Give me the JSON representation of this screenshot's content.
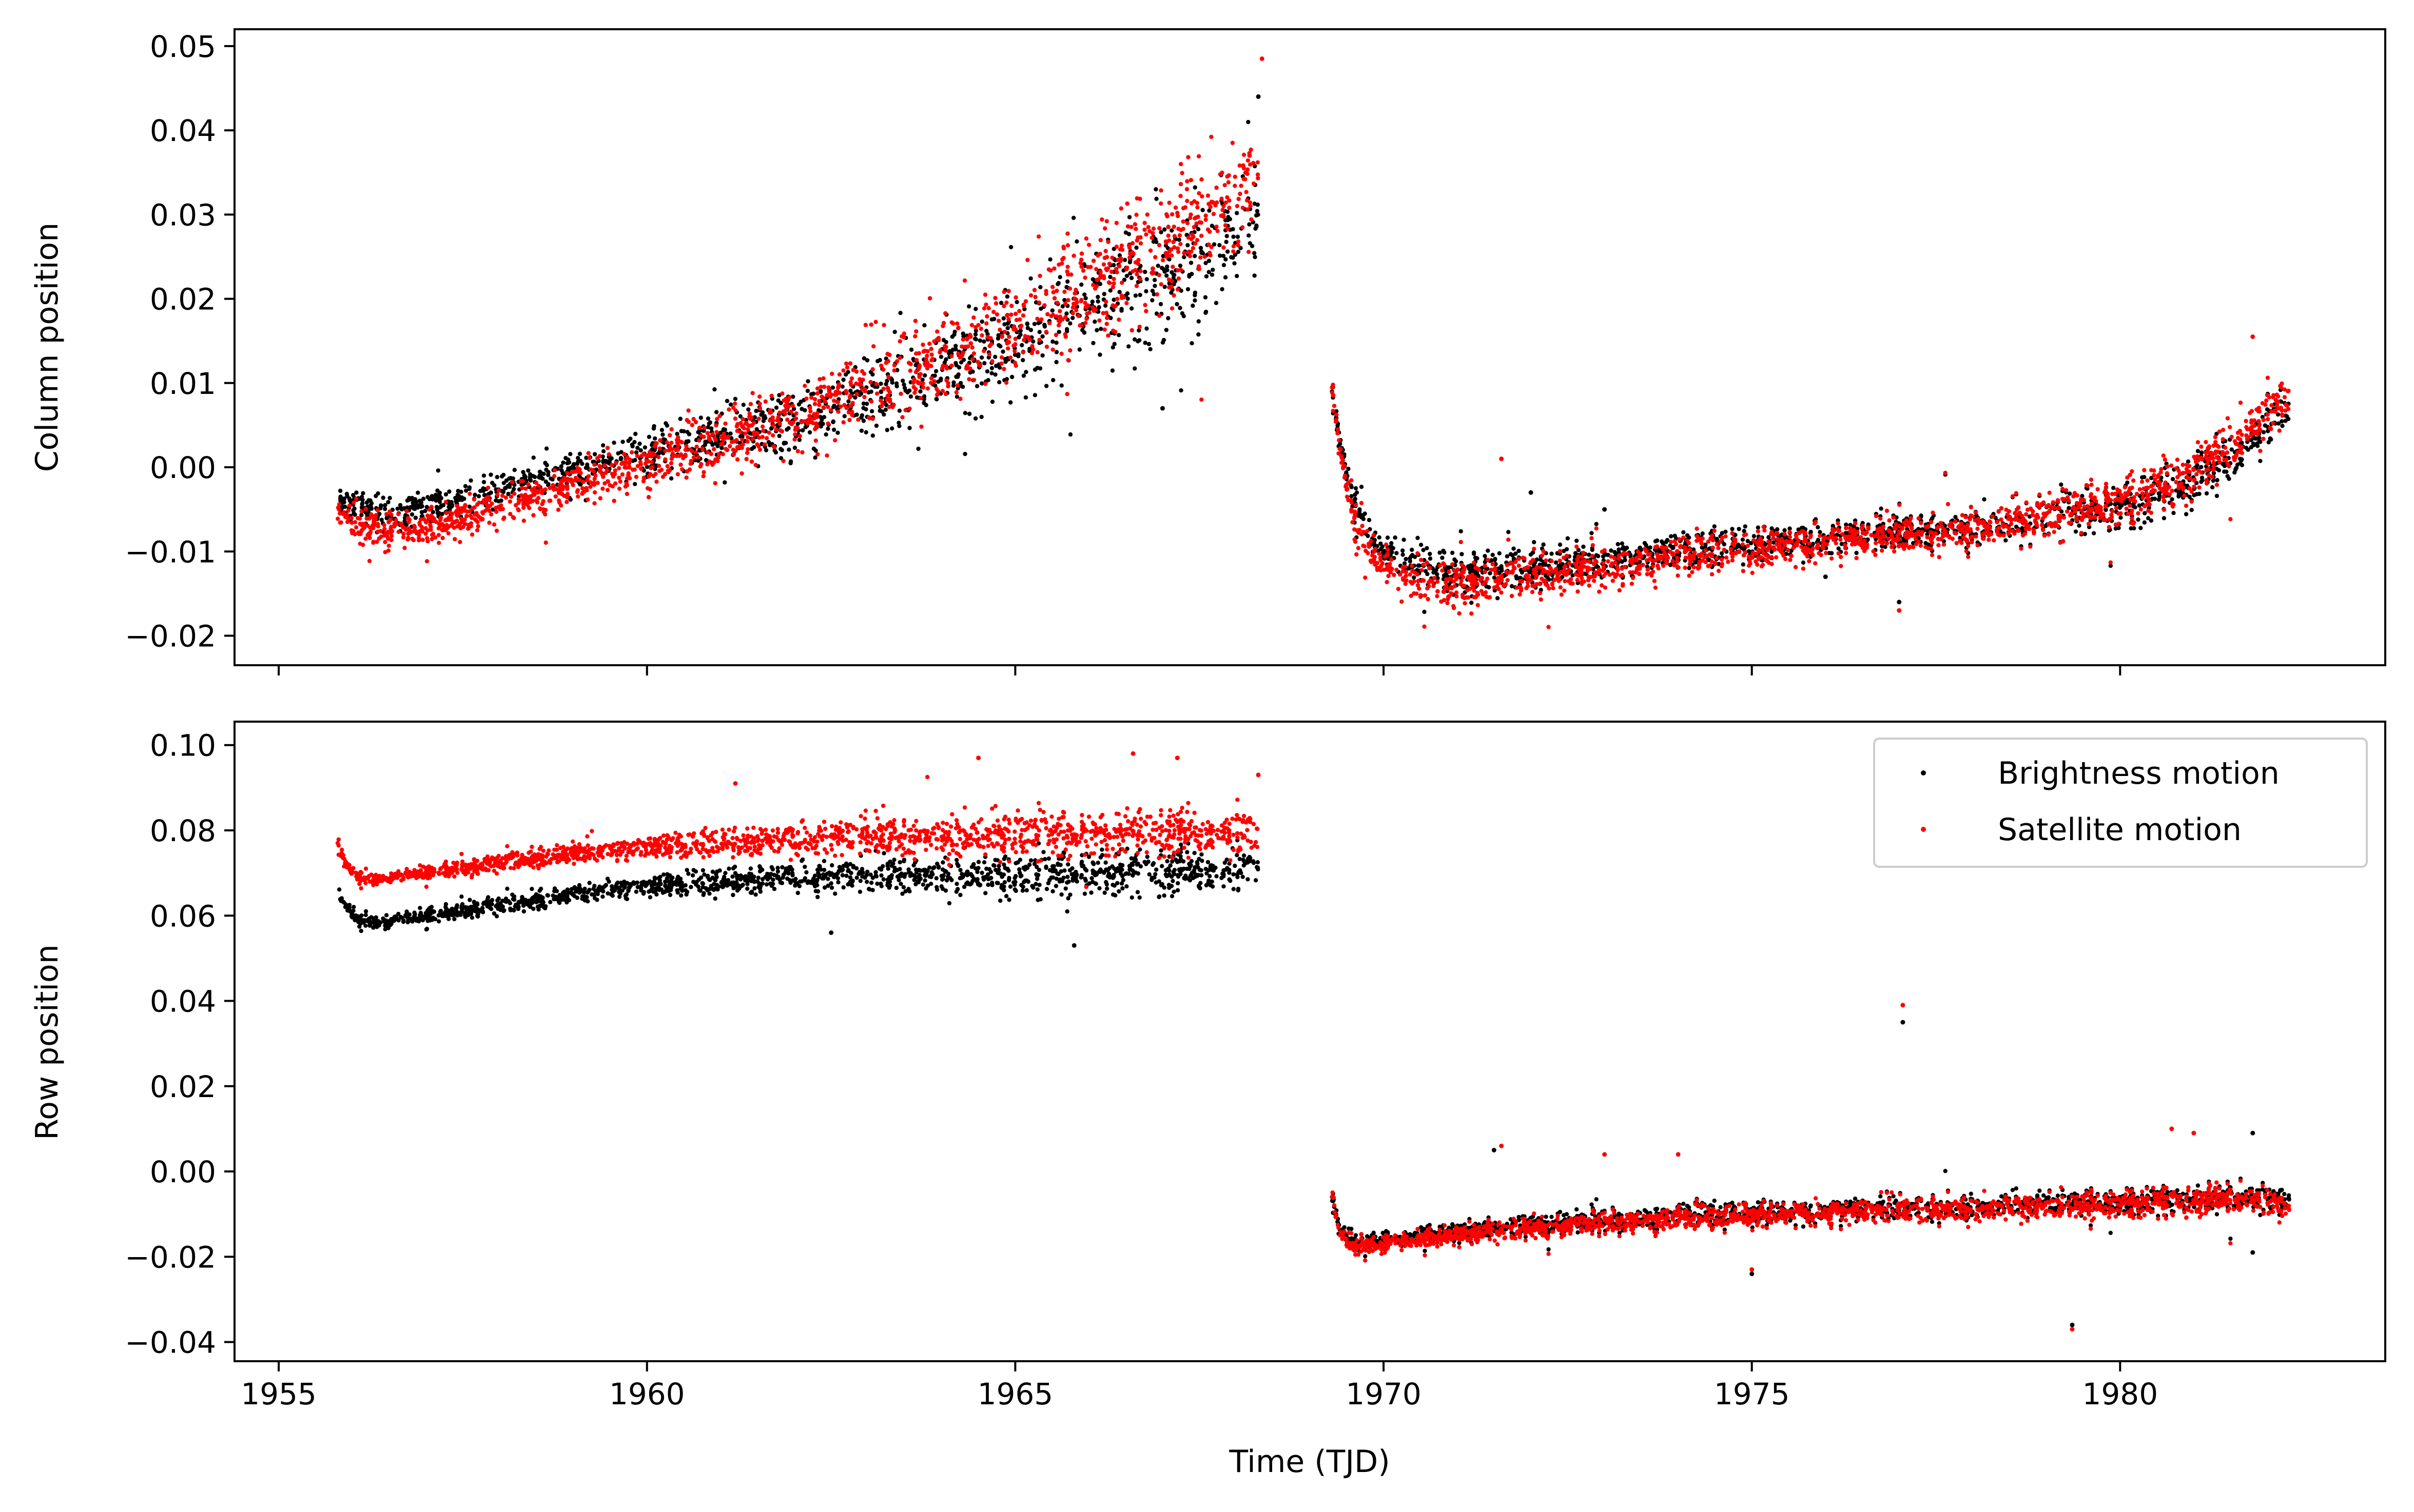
{
  "chart_data": [
    {
      "type": "scatter",
      "panel": "top",
      "title": "",
      "xlabel": "",
      "ylabel": "Column position",
      "xlim": [
        1954.4,
        1983.6
      ],
      "ylim": [
        -0.0235,
        0.052
      ],
      "xticks": [
        1955,
        1960,
        1965,
        1970,
        1975,
        1980
      ],
      "xtick_labels_shown": false,
      "yticks": [
        -0.02,
        -0.01,
        0.0,
        0.01,
        0.02,
        0.03,
        0.04,
        0.05
      ],
      "ytick_labels": [
        "−0.02",
        "−0.01",
        "0.00",
        "0.01",
        "0.02",
        "0.03",
        "0.04",
        "0.05"
      ],
      "grid": false,
      "series": [
        {
          "color": "#000000",
          "segments": [
            {
              "t": [
                1955.8,
                1956.0,
                1956.5,
                1957.0,
                1957.5,
                1958.0,
                1959.0,
                1960.0,
                1961.0,
                1962.0,
                1963.0,
                1964.0,
                1965.0,
                1966.0,
                1967.0,
                1967.5,
                1968.0,
                1968.3
              ],
              "y": [
                -0.0035,
                -0.0045,
                -0.0055,
                -0.005,
                -0.004,
                -0.0025,
                -0.0005,
                0.0015,
                0.0035,
                0.0055,
                0.0085,
                0.0115,
                0.015,
                0.019,
                0.0225,
                0.0245,
                0.0275,
                0.0295
              ],
              "scatter": [
                0.0012,
                0.0012,
                0.0012,
                0.0012,
                0.0012,
                0.0013,
                0.0015,
                0.0018,
                0.0022,
                0.0026,
                0.003,
                0.0035,
                0.004,
                0.0045,
                0.005,
                0.005,
                0.0045,
                0.004
              ],
              "count": 1400
            },
            {
              "t": [
                1969.3,
                1969.4,
                1969.6,
                1969.9,
                1970.3,
                1971.0,
                1972.0,
                1973.0,
                1974.0,
                1975.0,
                1976.0,
                1977.0,
                1978.0,
                1979.0,
                1980.0,
                1980.5,
                1981.0,
                1981.5,
                1982.0,
                1982.3
              ],
              "y": [
                0.009,
                0.003,
                -0.004,
                -0.009,
                -0.0115,
                -0.0125,
                -0.012,
                -0.0112,
                -0.01,
                -0.0092,
                -0.0085,
                -0.0078,
                -0.007,
                -0.006,
                -0.0045,
                -0.0035,
                -0.0015,
                0.001,
                0.005,
                0.0075
              ],
              "scatter": [
                0.001,
                0.0012,
                0.0015,
                0.0015,
                0.0018,
                0.0018,
                0.0016,
                0.0015,
                0.0014,
                0.0014,
                0.0013,
                0.0013,
                0.0014,
                0.0016,
                0.002,
                0.0022,
                0.0022,
                0.002,
                0.0018,
                0.0015
              ],
              "count": 1500
            }
          ],
          "outliers": [
            [
              1967.0,
              0.007
            ],
            [
              1968.3,
              0.044
            ],
            [
              1977.0,
              -0.016
            ],
            [
              1976.0,
              -0.013
            ],
            [
              1972.0,
              -0.003
            ],
            [
              1973.0,
              -0.005
            ]
          ]
        },
        {
          "color": "#ff0000",
          "segments": [
            {
              "t": [
                1955.8,
                1956.0,
                1956.5,
                1957.0,
                1957.5,
                1958.0,
                1959.0,
                1960.0,
                1961.0,
                1962.0,
                1963.0,
                1964.0,
                1965.0,
                1966.0,
                1967.0,
                1967.5,
                1968.0,
                1968.3
              ],
              "y": [
                -0.0055,
                -0.0065,
                -0.0075,
                -0.0072,
                -0.006,
                -0.0045,
                -0.002,
                0.0005,
                0.003,
                0.006,
                0.0095,
                0.013,
                0.017,
                0.0215,
                0.026,
                0.0285,
                0.032,
                0.0345
              ],
              "scatter": [
                0.0014,
                0.0014,
                0.0014,
                0.0014,
                0.0014,
                0.0015,
                0.0017,
                0.002,
                0.0024,
                0.0028,
                0.0032,
                0.0036,
                0.004,
                0.0044,
                0.0048,
                0.0048,
                0.0045,
                0.004
              ],
              "count": 1500
            },
            {
              "t": [
                1969.3,
                1969.4,
                1969.6,
                1969.9,
                1970.3,
                1971.0,
                1972.0,
                1973.0,
                1974.0,
                1975.0,
                1976.0,
                1977.0,
                1978.0,
                1979.0,
                1980.0,
                1980.5,
                1981.0,
                1981.5,
                1982.0,
                1982.3
              ],
              "y": [
                0.0095,
                0.002,
                -0.006,
                -0.011,
                -0.0135,
                -0.0138,
                -0.013,
                -0.012,
                -0.0108,
                -0.0098,
                -0.009,
                -0.0082,
                -0.0072,
                -0.006,
                -0.004,
                -0.0025,
                -0.0005,
                0.0025,
                0.0065,
                0.009
              ],
              "scatter": [
                0.001,
                0.0012,
                0.0015,
                0.0016,
                0.0018,
                0.0018,
                0.0017,
                0.0016,
                0.0015,
                0.0015,
                0.0014,
                0.0014,
                0.0015,
                0.0017,
                0.002,
                0.0022,
                0.0022,
                0.002,
                0.002,
                0.0018
              ],
              "count": 1600
            }
          ],
          "outliers": [
            [
              1968.35,
              0.0485
            ],
            [
              1977.0,
              -0.017
            ],
            [
              1981.8,
              0.0155
            ],
            [
              1971.6,
              0.001
            ]
          ]
        }
      ]
    },
    {
      "type": "scatter",
      "panel": "bottom",
      "title": "",
      "xlabel": "Time (TJD)",
      "ylabel": "Row position",
      "xlim": [
        1954.4,
        1983.6
      ],
      "ylim": [
        -0.0445,
        0.1055
      ],
      "xticks": [
        1955,
        1960,
        1965,
        1970,
        1975,
        1980
      ],
      "xtick_labels": [
        "1955",
        "1960",
        "1965",
        "1970",
        "1975",
        "1980"
      ],
      "yticks": [
        -0.04,
        -0.02,
        0.0,
        0.02,
        0.04,
        0.06,
        0.08,
        0.1
      ],
      "ytick_labels": [
        "−0.04",
        "−0.02",
        "0.00",
        "0.02",
        "0.04",
        "0.06",
        "0.08",
        "0.10"
      ],
      "grid": false,
      "legend_position": "top-right",
      "series": [
        {
          "name": "Brightness motion",
          "color": "#000000",
          "segments": [
            {
              "t": [
                1955.8,
                1955.9,
                1956.1,
                1956.3,
                1956.6,
                1957.0,
                1958.0,
                1959.0,
                1960.0,
                1961.0,
                1962.0,
                1963.0,
                1964.0,
                1965.0,
                1966.0,
                1967.0,
                1968.0,
                1968.3
              ],
              "y": [
                0.066,
                0.062,
                0.059,
                0.0585,
                0.059,
                0.06,
                0.0625,
                0.065,
                0.067,
                0.068,
                0.0688,
                0.0692,
                0.0695,
                0.0698,
                0.07,
                0.0702,
                0.0705,
                0.071
              ],
              "scatter": [
                0.0012,
                0.0012,
                0.001,
                0.001,
                0.001,
                0.0011,
                0.0013,
                0.0015,
                0.0017,
                0.002,
                0.0023,
                0.0026,
                0.0029,
                0.0032,
                0.0034,
                0.0035,
                0.0035,
                0.0035
              ],
              "count": 1500
            },
            {
              "t": [
                1969.3,
                1969.4,
                1969.6,
                1970.0,
                1971.0,
                1972.0,
                1974.0,
                1976.0,
                1978.0,
                1980.0,
                1981.0,
                1982.0,
                1982.3
              ],
              "y": [
                -0.006,
                -0.014,
                -0.0165,
                -0.016,
                -0.014,
                -0.0125,
                -0.0105,
                -0.0092,
                -0.0082,
                -0.0072,
                -0.0065,
                -0.006,
                -0.0065
              ],
              "scatter": [
                0.0015,
                0.0015,
                0.0012,
                0.0012,
                0.0014,
                0.0016,
                0.0018,
                0.0018,
                0.0018,
                0.002,
                0.0022,
                0.0022,
                0.002
              ],
              "count": 1600
            }
          ],
          "outliers": [
            [
              1977.05,
              0.035
            ],
            [
              1979.35,
              -0.036
            ],
            [
              1962.5,
              0.056
            ],
            [
              1965.8,
              0.053
            ],
            [
              1975.0,
              -0.024
            ],
            [
              1971.5,
              0.005
            ],
            [
              1981.8,
              0.009
            ],
            [
              1981.8,
              -0.019
            ]
          ]
        },
        {
          "name": "Satellite motion",
          "color": "#ff0000",
          "segments": [
            {
              "t": [
                1955.8,
                1955.9,
                1956.1,
                1956.3,
                1956.6,
                1957.0,
                1958.0,
                1959.0,
                1960.0,
                1961.0,
                1962.0,
                1963.0,
                1964.0,
                1965.0,
                1966.0,
                1967.0,
                1968.0,
                1968.3
              ],
              "y": [
                0.077,
                0.072,
                0.069,
                0.0685,
                0.069,
                0.07,
                0.0725,
                0.0745,
                0.076,
                0.077,
                0.0778,
                0.0783,
                0.0787,
                0.079,
                0.0793,
                0.0795,
                0.0798,
                0.08
              ],
              "scatter": [
                0.0012,
                0.0012,
                0.001,
                0.001,
                0.001,
                0.0011,
                0.0013,
                0.0016,
                0.0018,
                0.0021,
                0.0024,
                0.0027,
                0.003,
                0.0033,
                0.0035,
                0.0036,
                0.0036,
                0.0036
              ],
              "count": 1600
            },
            {
              "t": [
                1969.3,
                1969.4,
                1969.6,
                1970.0,
                1971.0,
                1972.0,
                1974.0,
                1976.0,
                1978.0,
                1980.0,
                1981.0,
                1982.0,
                1982.3
              ],
              "y": [
                -0.005,
                -0.015,
                -0.0175,
                -0.017,
                -0.0148,
                -0.0132,
                -0.011,
                -0.0097,
                -0.0087,
                -0.0077,
                -0.007,
                -0.0068,
                -0.009
              ],
              "scatter": [
                0.0015,
                0.0015,
                0.0012,
                0.0012,
                0.0015,
                0.0017,
                0.0019,
                0.0019,
                0.0019,
                0.0021,
                0.0023,
                0.0023,
                0.002
              ],
              "count": 1700
            }
          ],
          "outliers": [
            [
              1977.05,
              0.039
            ],
            [
              1979.35,
              -0.037
            ],
            [
              1964.5,
              0.097
            ],
            [
              1966.6,
              0.098
            ],
            [
              1967.2,
              0.097
            ],
            [
              1968.3,
              0.093
            ],
            [
              1961.2,
              0.091
            ],
            [
              1971.6,
              0.006
            ],
            [
              1980.7,
              0.01
            ],
            [
              1981.0,
              0.009
            ],
            [
              1973.0,
              0.004
            ],
            [
              1974.0,
              0.004
            ],
            [
              1975.0,
              -0.023
            ]
          ]
        }
      ]
    }
  ]
}
